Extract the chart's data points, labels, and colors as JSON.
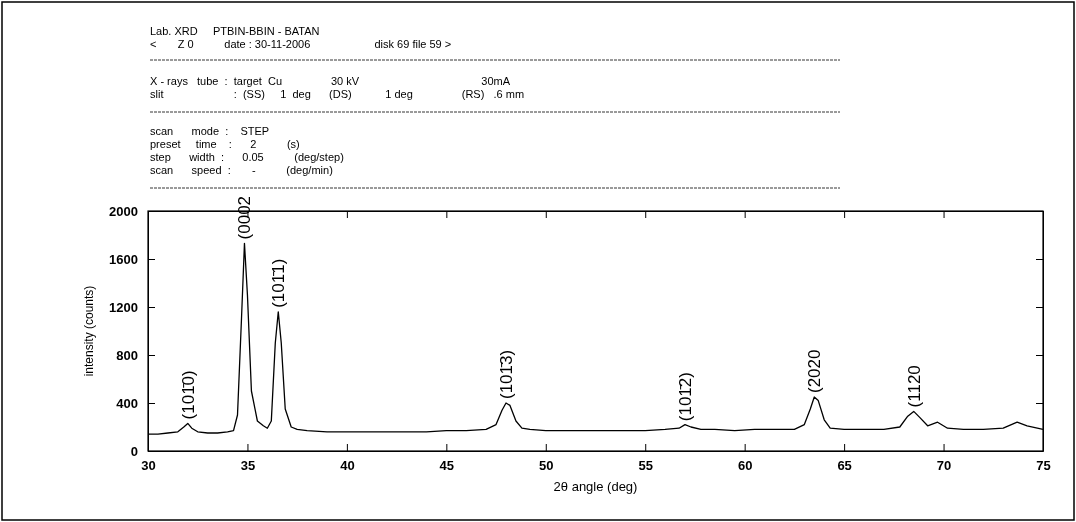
{
  "chart_data": {
    "type": "line",
    "xlabel": "2θ angle (deg)",
    "ylabel": "intensity (counts)",
    "annotations": [
      "Lab. XRD     PTBIN-BBIN - BATAN",
      "<       Z 0          date : 30-11-2006                     disk 69 file 59 >",
      "X - rays   tube  :  target  Cu                30 kV                                        30mA",
      "slit                       :  (SS)     1  deg      (DS)           1 deg                (RS)   .6 mm",
      "scan      mode  :    STEP",
      "preset     time    :      2          (s)",
      "step      width  :      0.05          (deg/step)",
      "scan      speed  :       -          (deg/min)",
      {
        "text": "(101̄0)",
        "x": 32,
        "y": 230
      },
      {
        "text": "(0002",
        "x": 34.85,
        "y": 1730
      },
      {
        "text": "(101̄1)",
        "x": 36.55,
        "y": 1160
      },
      {
        "text": "(101̄3)",
        "x": 48,
        "y": 400
      },
      {
        "text": "(101̄2)",
        "x": 57,
        "y": 215
      },
      {
        "text": "(2020",
        "x": 63.5,
        "y": 450
      },
      {
        "text": "(1120",
        "x": 68.5,
        "y": 330
      }
    ],
    "series": [
      {
        "color": "#000000",
        "x": [
          30,
          30.5,
          31,
          31.5,
          31.8,
          32,
          32.2,
          32.5,
          33,
          33.5,
          34,
          34.3,
          34.5,
          34.7,
          34.85,
          35,
          35.2,
          35.5,
          35.8,
          36,
          36.2,
          36.4,
          36.55,
          36.7,
          36.9,
          37.2,
          37.5,
          38,
          39,
          40,
          41,
          42,
          43,
          44,
          45,
          46,
          47,
          47.5,
          47.8,
          48,
          48.2,
          48.5,
          48.8,
          49.2,
          50,
          51,
          52,
          53,
          54,
          55,
          56,
          56.7,
          57,
          57.3,
          57.8,
          58.5,
          59.5,
          60.5,
          61.5,
          62.5,
          63,
          63.3,
          63.5,
          63.7,
          64,
          64.3,
          65,
          66,
          67,
          67.8,
          68.2,
          68.5,
          68.8,
          69.2,
          69.7,
          70.2,
          71,
          72,
          73,
          73.7,
          74.2,
          75
        ],
        "values": [
          140,
          140,
          150,
          160,
          200,
          230,
          190,
          160,
          150,
          150,
          160,
          170,
          300,
          1100,
          1730,
          1300,
          500,
          250,
          210,
          190,
          250,
          900,
          1160,
          900,
          350,
          200,
          180,
          170,
          160,
          160,
          160,
          160,
          160,
          160,
          170,
          170,
          180,
          220,
          340,
          400,
          380,
          250,
          190,
          180,
          170,
          170,
          170,
          170,
          170,
          170,
          180,
          190,
          220,
          200,
          180,
          180,
          170,
          180,
          180,
          180,
          220,
          350,
          450,
          420,
          260,
          190,
          180,
          180,
          180,
          200,
          290,
          330,
          280,
          210,
          240,
          190,
          180,
          180,
          190,
          240,
          210,
          180
        ]
      }
    ],
    "xlim": [
      30,
      75
    ],
    "xticks": [
      30,
      35,
      40,
      45,
      50,
      55,
      60,
      65,
      70,
      75
    ],
    "ylim": [
      0,
      2000
    ],
    "yticks": [
      0,
      400,
      800,
      1200,
      1600,
      2000
    ],
    "grid": false,
    "marker": "none",
    "line_style": "solid"
  }
}
